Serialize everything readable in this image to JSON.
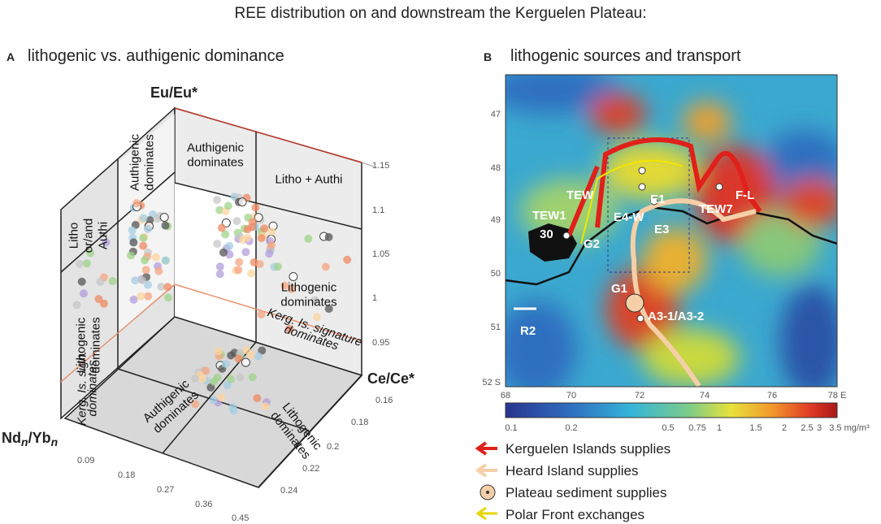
{
  "header": {
    "title": "REE distribution on and downstream the Kerguelen Plateau:"
  },
  "panel_a": {
    "label": "A",
    "title": "lithogenic vs. authigenic dominance",
    "z_axis_label": "Eu/Eu*",
    "y_axis_label": "Ce/Ce*",
    "x_axis_label": {
      "base1": "Nd",
      "sub1": "n",
      "base2": "/Yb",
      "sub2": "n"
    },
    "z_ticks": [
      1.15,
      1.1,
      1.05,
      1,
      0.95
    ],
    "y_ticks": [
      0.16,
      0.18,
      0.2,
      0.22,
      0.24
    ],
    "x_ticks": [
      0.09,
      0.18,
      0.27,
      0.36,
      0.45
    ],
    "regions": [
      {
        "lines": [
          "Litho",
          "or/and",
          "Authi"
        ]
      },
      {
        "lines": [
          "Authigenic",
          "dominates"
        ]
      },
      {
        "lines": [
          "Lithogenic",
          "dominates"
        ]
      },
      {
        "lines": [
          "Kerg. Is. sign.",
          "dominates"
        ]
      },
      {
        "lines": [
          "Authigenic",
          "dominates"
        ]
      },
      {
        "lines": [
          "Litho + Authi"
        ]
      },
      {
        "lines": [
          "Lithogenic",
          "dominates"
        ]
      },
      {
        "lines": [
          "Kerg. Is. signature",
          "dominates"
        ]
      },
      {
        "lines": [
          "Authigenic",
          "dominates"
        ]
      },
      {
        "lines": [
          "Lithogenic",
          "dominates"
        ]
      }
    ]
  },
  "panel_b": {
    "label": "B",
    "title": "lithogenic sources and transport",
    "lat_ticks": [
      47,
      48,
      49,
      50,
      51,
      "52 S"
    ],
    "lon_ticks": [
      68,
      70,
      72,
      74,
      76,
      "78 E"
    ],
    "colorbar_ticks": [
      0.1,
      0.2,
      0.5,
      0.75,
      1,
      1.5,
      2,
      2.5,
      3,
      "3.5 mg/m³"
    ],
    "stations": [
      "TEW1",
      "TEW",
      "G2",
      "E4-W",
      "E1",
      "E3",
      "G1",
      "A3-1/A3-2",
      "R2",
      "F-L",
      "TEW7",
      "30"
    ],
    "legend": [
      "Kerguelen Islands supplies",
      "Heard Island supplies",
      "Plateau sediment supplies",
      "Polar Front exchanges"
    ]
  }
}
